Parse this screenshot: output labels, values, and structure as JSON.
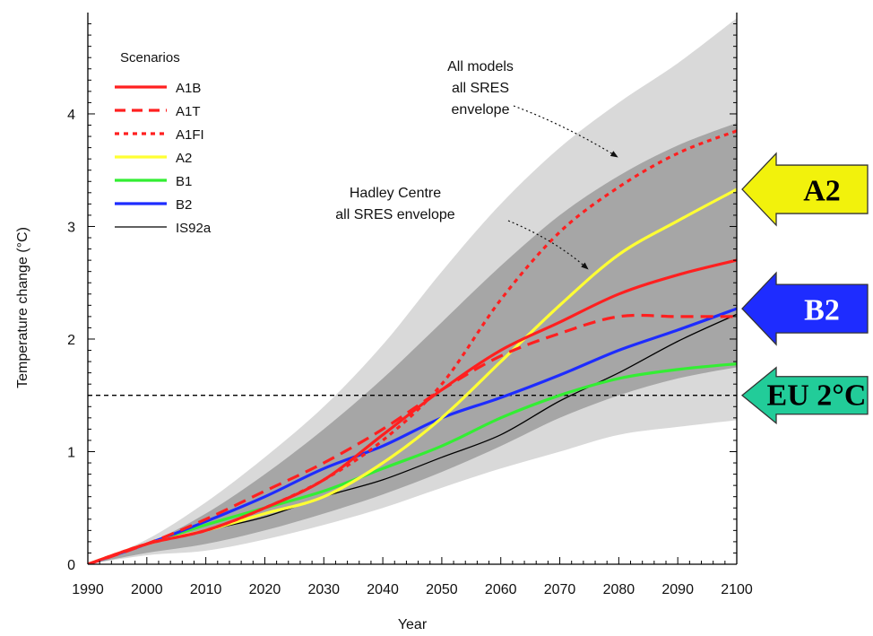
{
  "chart_data": {
    "type": "area",
    "xlabel": "Year",
    "ylabel": "Temperature change (°C)",
    "xlim": [
      1990,
      2100
    ],
    "ylim": [
      0,
      4.9
    ],
    "x_ticks": [
      "1990",
      "2000",
      "2010",
      "2020",
      "2030",
      "2040",
      "2050",
      "2060",
      "2070",
      "2080",
      "2090",
      "2100"
    ],
    "y_ticks": [
      "0",
      "1",
      "2",
      "3",
      "4"
    ],
    "legend_title": "Scenarios",
    "legend_position": "top-left",
    "envelopes": [
      {
        "name": "All models all SRES envelope",
        "color": "#d9d9d9",
        "x": [
          1990,
          2000,
          2010,
          2020,
          2030,
          2040,
          2050,
          2060,
          2070,
          2080,
          2090,
          2100
        ],
        "upper": [
          0.0,
          0.22,
          0.55,
          0.95,
          1.4,
          1.95,
          2.6,
          3.2,
          3.7,
          4.1,
          4.45,
          4.85
        ],
        "lower": [
          0.0,
          0.08,
          0.12,
          0.22,
          0.35,
          0.5,
          0.68,
          0.85,
          1.0,
          1.15,
          1.22,
          1.28
        ]
      },
      {
        "name": "Hadley Centre all SRES envelope",
        "color": "#a6a6a6",
        "x": [
          1990,
          2000,
          2010,
          2020,
          2030,
          2040,
          2050,
          2060,
          2070,
          2080,
          2090,
          2100
        ],
        "upper": [
          0.0,
          0.18,
          0.45,
          0.8,
          1.2,
          1.65,
          2.15,
          2.65,
          3.1,
          3.45,
          3.72,
          3.92
        ],
        "lower": [
          0.0,
          0.1,
          0.18,
          0.3,
          0.45,
          0.62,
          0.82,
          1.05,
          1.3,
          1.5,
          1.65,
          1.75
        ]
      }
    ],
    "x": [
      1990,
      2000,
      2010,
      2020,
      2030,
      2040,
      2050,
      2060,
      2070,
      2080,
      2090,
      2100
    ],
    "series": [
      {
        "name": "A1B",
        "color": "#ff2020",
        "style": "solid",
        "values": [
          0.0,
          0.18,
          0.3,
          0.5,
          0.75,
          1.15,
          1.55,
          1.9,
          2.15,
          2.4,
          2.57,
          2.7
        ]
      },
      {
        "name": "A1T",
        "color": "#ff2020",
        "style": "dashed",
        "values": [
          0.0,
          0.18,
          0.4,
          0.65,
          0.9,
          1.2,
          1.55,
          1.85,
          2.05,
          2.2,
          2.2,
          2.2
        ]
      },
      {
        "name": "A1FI",
        "color": "#ff2020",
        "style": "dotted",
        "values": [
          0.0,
          0.18,
          0.3,
          0.5,
          0.75,
          1.1,
          1.6,
          2.35,
          2.95,
          3.35,
          3.65,
          3.85
        ]
      },
      {
        "name": "A2",
        "color": "#ffff33",
        "style": "solid",
        "values": [
          0.0,
          0.18,
          0.3,
          0.45,
          0.6,
          0.9,
          1.3,
          1.8,
          2.3,
          2.75,
          3.05,
          3.33
        ]
      },
      {
        "name": "B1",
        "color": "#33ee33",
        "style": "solid",
        "values": [
          0.0,
          0.18,
          0.35,
          0.5,
          0.65,
          0.85,
          1.05,
          1.3,
          1.5,
          1.65,
          1.73,
          1.78
        ]
      },
      {
        "name": "B2",
        "color": "#1e2cff",
        "style": "solid",
        "values": [
          0.0,
          0.18,
          0.38,
          0.6,
          0.85,
          1.05,
          1.3,
          1.48,
          1.68,
          1.9,
          2.08,
          2.27
        ]
      },
      {
        "name": "IS92a",
        "color": "#000000",
        "style": "solid",
        "values": [
          0.0,
          0.18,
          0.3,
          0.42,
          0.6,
          0.75,
          0.95,
          1.15,
          1.45,
          1.7,
          1.98,
          2.22
        ]
      }
    ],
    "reference_line": {
      "y": 1.5,
      "style": "dashed",
      "color": "#000000"
    },
    "annotations": [
      {
        "id": "all_models",
        "lines": [
          "All models",
          "all SRES",
          "envelope"
        ],
        "points_to": {
          "x": 2083,
          "y": 3.6
        }
      },
      {
        "id": "hadley",
        "lines": [
          "Hadley Centre",
          "all SRES envelope"
        ],
        "points_to": {
          "x": 2062,
          "y": 2.55
        }
      }
    ],
    "side_arrows": [
      {
        "label": "A2",
        "fill": "#f2f20c",
        "text_color": "#000000",
        "y": 3.33
      },
      {
        "label": "B2",
        "fill": "#1e2cff",
        "text_color": "#ffffff",
        "y": 2.27
      },
      {
        "label": "EU 2°C",
        "fill": "#22cc99",
        "text_color": "#000000",
        "y": 1.5
      }
    ]
  }
}
